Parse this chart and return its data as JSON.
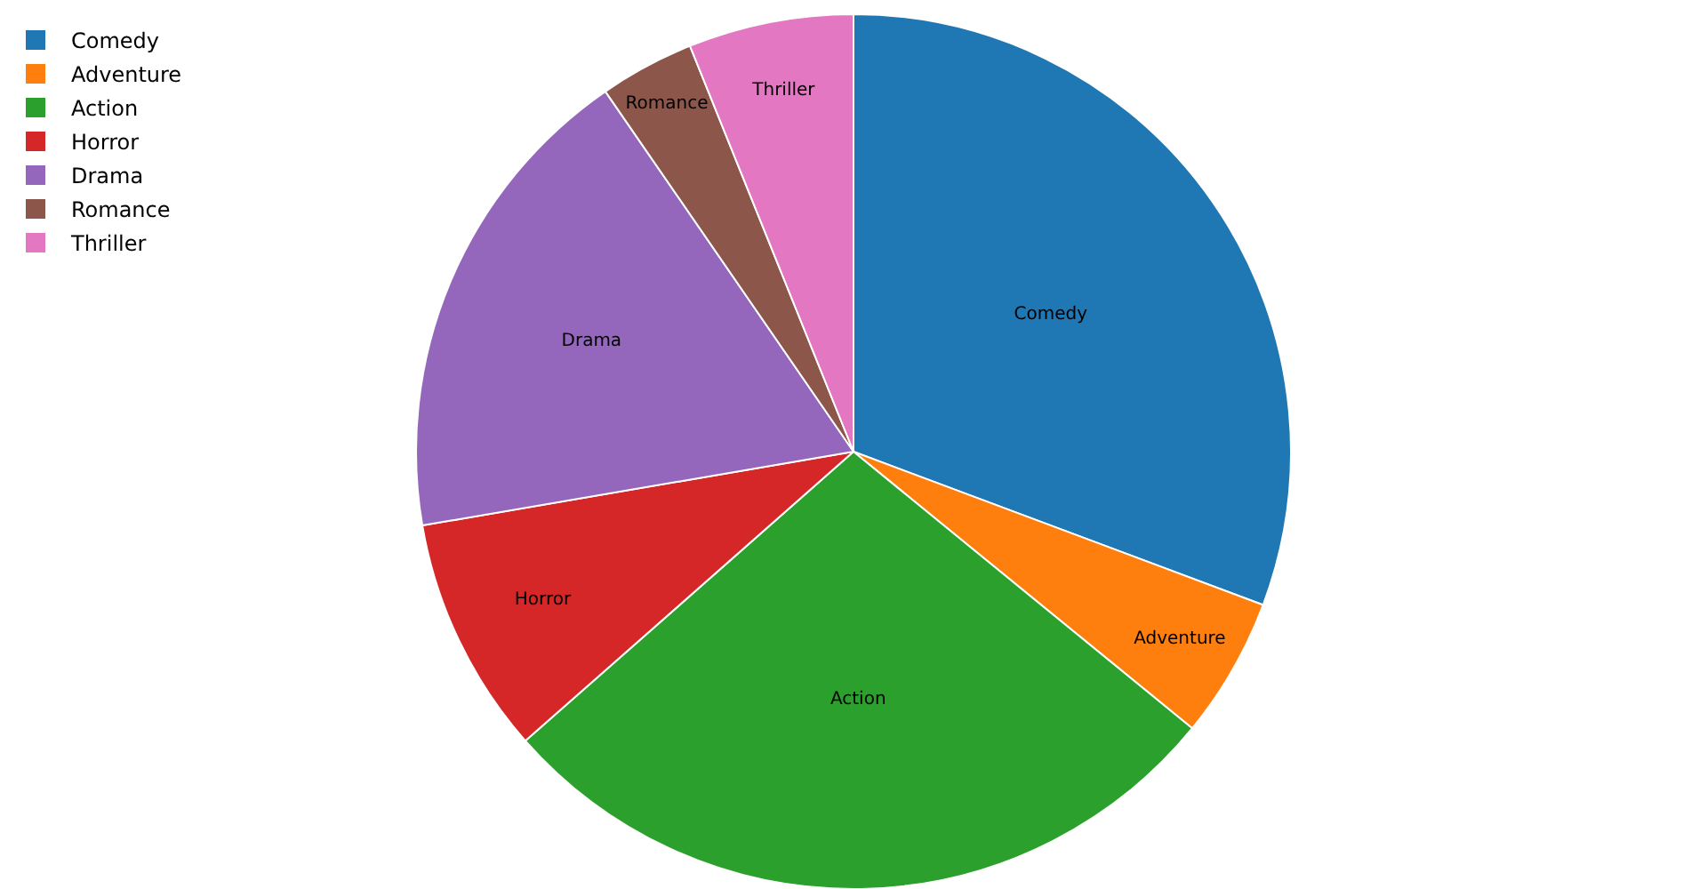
{
  "chart_data": {
    "type": "pie",
    "categories": [
      "Comedy",
      "Adventure",
      "Action",
      "Horror",
      "Drama",
      "Romance",
      "Thriller"
    ],
    "values": [
      30.7,
      5.2,
      27.6,
      8.8,
      18.1,
      3.5,
      6.1
    ],
    "colors": [
      "#1f77b4",
      "#ff7f0e",
      "#2ca02c",
      "#d62728",
      "#9467bd",
      "#8c564b",
      "#e377c2"
    ],
    "legend": "top left"
  }
}
